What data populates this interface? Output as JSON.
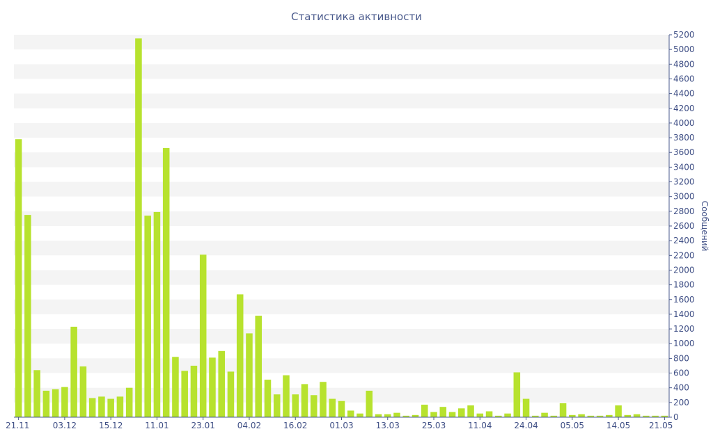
{
  "chart_data": {
    "type": "bar",
    "title": "Статистика активности",
    "xlabel": "",
    "ylabel": "Сообщений",
    "ylim": [
      0,
      5200
    ],
    "ytick_step": 200,
    "y_axis_side": "right",
    "grid": "alternating horizontal bands",
    "colors": {
      "bar": "#b7e22e",
      "band": "#f4f4f4",
      "text": "#3f4f85"
    },
    "x_tick_labels": [
      {
        "index": 0,
        "label": "21.11"
      },
      {
        "index": 5,
        "label": "03.12"
      },
      {
        "index": 10,
        "label": "15.12"
      },
      {
        "index": 15,
        "label": "11.01"
      },
      {
        "index": 20,
        "label": "23.01"
      },
      {
        "index": 25,
        "label": "04.02"
      },
      {
        "index": 30,
        "label": "16.02"
      },
      {
        "index": 35,
        "label": "01.03"
      },
      {
        "index": 40,
        "label": "13.03"
      },
      {
        "index": 45,
        "label": "25.03"
      },
      {
        "index": 50,
        "label": "11.04"
      },
      {
        "index": 55,
        "label": "24.04"
      },
      {
        "index": 60,
        "label": "05.05"
      },
      {
        "index": 65,
        "label": "14.05"
      },
      {
        "index": 70,
        "label": "21.05"
      }
    ],
    "values": [
      3780,
      2750,
      640,
      360,
      380,
      410,
      1230,
      690,
      260,
      280,
      250,
      280,
      400,
      5150,
      2740,
      2790,
      3660,
      820,
      630,
      700,
      2210,
      810,
      900,
      620,
      1670,
      1140,
      1380,
      510,
      310,
      570,
      310,
      450,
      300,
      480,
      250,
      220,
      90,
      50,
      360,
      40,
      40,
      60,
      20,
      30,
      170,
      70,
      140,
      70,
      120,
      160,
      50,
      80,
      20,
      50,
      610,
      250,
      20,
      60,
      20,
      190,
      30,
      40,
      20,
      20,
      30,
      160,
      30,
      40,
      20,
      20,
      20
    ]
  }
}
